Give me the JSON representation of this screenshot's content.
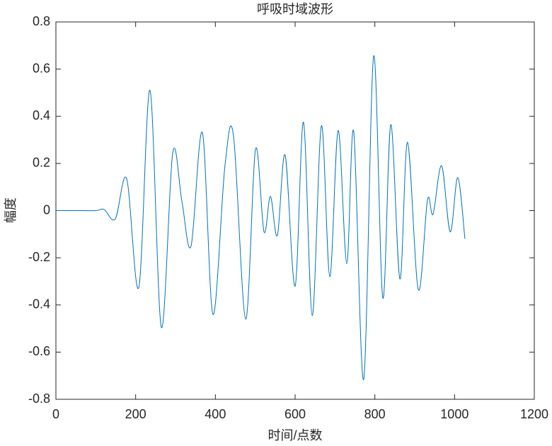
{
  "chart_data": {
    "type": "line",
    "title": "呼吸时域波形",
    "x_label": "时间/点数",
    "y_label": "幅度",
    "series": [
      {
        "color": "#0072bd",
        "x": [
          0,
          50,
          100,
          120.7,
          149,
          177.5,
          208,
          236,
          264.5,
          293,
          316,
          339,
          367.5,
          394,
          424,
          445.6,
          476,
          500.6,
          522,
          538,
          555.6,
          575,
          600,
          621,
          643,
          666,
          687,
          708,
          729.6,
          747,
          772,
          797,
          820,
          840,
          863,
          882,
          909,
          932,
          946,
          967.5,
          989,
          1008,
          1026
        ],
        "values": [
          0,
          0,
          0,
          0.005,
          -0.035,
          0.135,
          -0.325,
          0.51,
          -0.495,
          0.245,
          0.04,
          -0.15,
          0.33,
          -0.44,
          0.19,
          0.315,
          -0.46,
          0.26,
          -0.09,
          0.06,
          -0.105,
          0.235,
          -0.32,
          0.375,
          -0.445,
          0.36,
          -0.28,
          0.34,
          -0.225,
          0.335,
          -0.715,
          0.655,
          -0.37,
          0.365,
          -0.29,
          0.29,
          -0.335,
          0.045,
          -0.015,
          0.19,
          -0.09,
          0.14,
          -0.12
        ]
      }
    ],
    "xlim": [
      0,
      1200
    ],
    "xticks": [
      0,
      200,
      400,
      600,
      800,
      1000,
      1200
    ],
    "ylim": [
      -0.8,
      0.8
    ],
    "yticks": [
      -0.8,
      -0.6,
      -0.4,
      -0.2,
      0,
      0.2,
      0.4,
      0.6,
      0.8
    ],
    "grid": false
  }
}
